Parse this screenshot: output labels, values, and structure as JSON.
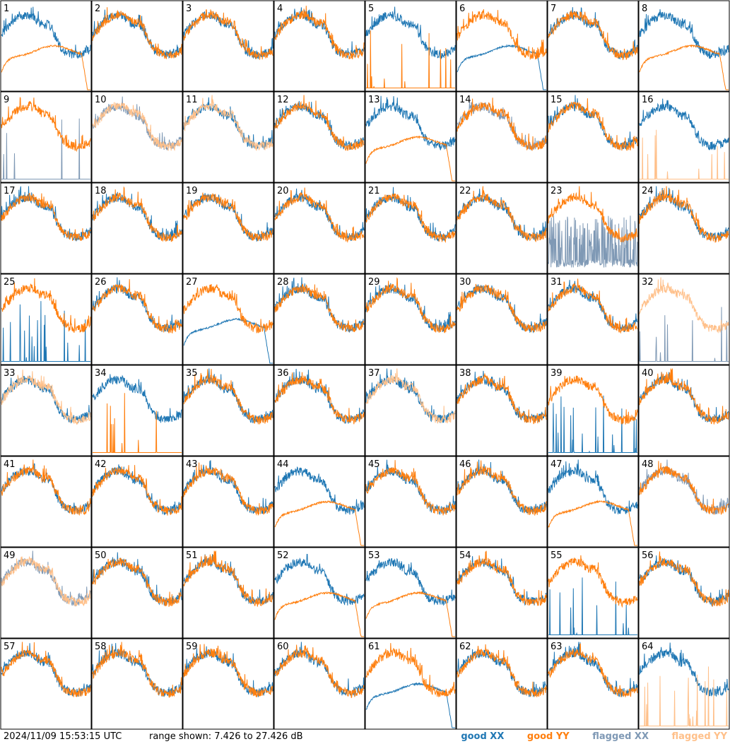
{
  "footer": {
    "timestamp": "2024/11/09 15:53:15 UTC",
    "range_text": "range shown: 7.426 to 27.426 dB"
  },
  "legend": [
    {
      "label": "good XX",
      "color": "#1f77b4"
    },
    {
      "label": "good YY",
      "color": "#ff7f0e"
    },
    {
      "label": "flagged XX",
      "color": "#7f99b5"
    },
    {
      "label": "flagged YY",
      "color": "#ffc08a"
    }
  ],
  "chart_data": {
    "type": "line",
    "layout": "8x8 small multiples of per-antenna spectra",
    "ylim_db": [
      7.426,
      27.426
    ],
    "panels": [
      {
        "id": "1",
        "xx": "good",
        "yy": "good",
        "yy_shape": "flat-rolloff"
      },
      {
        "id": "2",
        "xx": "good",
        "yy": "good"
      },
      {
        "id": "3",
        "xx": "good",
        "yy": "good"
      },
      {
        "id": "4",
        "xx": "good",
        "yy": "good"
      },
      {
        "id": "5",
        "xx": "good",
        "yy": "good",
        "yy_shape": "spiky-low"
      },
      {
        "id": "6",
        "xx": "good",
        "yy": "good",
        "xx_shape": "flat-rolloff"
      },
      {
        "id": "7",
        "xx": "good",
        "yy": "good"
      },
      {
        "id": "8",
        "xx": "good",
        "yy": "good",
        "yy_shape": "flat-rolloff"
      },
      {
        "id": "9",
        "xx": "flagged",
        "yy": "good",
        "xx_shape": "spiky-low"
      },
      {
        "id": "10",
        "xx": "flagged",
        "yy": "flagged"
      },
      {
        "id": "11",
        "xx": "good",
        "yy": "flagged"
      },
      {
        "id": "12",
        "xx": "good",
        "yy": "good"
      },
      {
        "id": "13",
        "xx": "good",
        "yy": "good",
        "yy_shape": "flat-rolloff"
      },
      {
        "id": "14",
        "xx": "flagged",
        "yy": "good"
      },
      {
        "id": "15",
        "xx": "good",
        "yy": "good"
      },
      {
        "id": "16",
        "xx": "good",
        "yy": "flagged",
        "yy_shape": "spiky-low"
      },
      {
        "id": "17",
        "xx": "good",
        "yy": "good"
      },
      {
        "id": "18",
        "xx": "good",
        "yy": "good"
      },
      {
        "id": "19",
        "xx": "good",
        "yy": "good"
      },
      {
        "id": "20",
        "xx": "good",
        "yy": "good"
      },
      {
        "id": "21",
        "xx": "good",
        "yy": "good"
      },
      {
        "id": "22",
        "xx": "good",
        "yy": "good"
      },
      {
        "id": "23",
        "xx": "flagged",
        "yy": "good",
        "xx_shape": "noisy-drop"
      },
      {
        "id": "24",
        "xx": "good",
        "yy": "good"
      },
      {
        "id": "25",
        "xx": "good",
        "yy": "good",
        "xx_shape": "spiky-low"
      },
      {
        "id": "26",
        "xx": "good",
        "yy": "good"
      },
      {
        "id": "27",
        "xx": "good",
        "yy": "good",
        "xx_shape": "flat-rolloff"
      },
      {
        "id": "28",
        "xx": "good",
        "yy": "good"
      },
      {
        "id": "29",
        "xx": "good",
        "yy": "good"
      },
      {
        "id": "30",
        "xx": "good",
        "yy": "good"
      },
      {
        "id": "31",
        "xx": "good",
        "yy": "good"
      },
      {
        "id": "32",
        "xx": "flagged",
        "yy": "flagged",
        "xx_shape": "spiky-low"
      },
      {
        "id": "33",
        "xx": "good",
        "yy": "flagged"
      },
      {
        "id": "34",
        "xx": "good",
        "yy": "good",
        "yy_shape": "spiky-low"
      },
      {
        "id": "35",
        "xx": "good",
        "yy": "good"
      },
      {
        "id": "36",
        "xx": "good",
        "yy": "good"
      },
      {
        "id": "37",
        "xx": "good",
        "yy": "flagged"
      },
      {
        "id": "38",
        "xx": "good",
        "yy": "good"
      },
      {
        "id": "39",
        "xx": "good",
        "yy": "good",
        "xx_shape": "spiky-low"
      },
      {
        "id": "40",
        "xx": "good",
        "yy": "good"
      },
      {
        "id": "41",
        "xx": "good",
        "yy": "good"
      },
      {
        "id": "42",
        "xx": "good",
        "yy": "good"
      },
      {
        "id": "43",
        "xx": "good",
        "yy": "good"
      },
      {
        "id": "44",
        "xx": "good",
        "yy": "good",
        "yy_shape": "flat-rolloff"
      },
      {
        "id": "45",
        "xx": "good",
        "yy": "good"
      },
      {
        "id": "46",
        "xx": "good",
        "yy": "good"
      },
      {
        "id": "47",
        "xx": "good",
        "yy": "good",
        "yy_shape": "flat-rolloff"
      },
      {
        "id": "48",
        "xx": "flagged",
        "yy": "good"
      },
      {
        "id": "49",
        "xx": "flagged",
        "yy": "flagged"
      },
      {
        "id": "50",
        "xx": "good",
        "yy": "good"
      },
      {
        "id": "51",
        "xx": "good",
        "yy": "good"
      },
      {
        "id": "52",
        "xx": "good",
        "yy": "good",
        "yy_shape": "flat-rolloff"
      },
      {
        "id": "53",
        "xx": "good",
        "yy": "good",
        "yy_shape": "flat-rolloff"
      },
      {
        "id": "54",
        "xx": "good",
        "yy": "good"
      },
      {
        "id": "55",
        "xx": "good",
        "yy": "good",
        "xx_shape": "spiky-low"
      },
      {
        "id": "56",
        "xx": "good",
        "yy": "good"
      },
      {
        "id": "57",
        "xx": "good",
        "yy": "good"
      },
      {
        "id": "58",
        "xx": "good",
        "yy": "good"
      },
      {
        "id": "59",
        "xx": "good",
        "yy": "good"
      },
      {
        "id": "60",
        "xx": "good",
        "yy": "good"
      },
      {
        "id": "61",
        "xx": "good",
        "yy": "good",
        "xx_shape": "flat-rolloff"
      },
      {
        "id": "62",
        "xx": "good",
        "yy": "good"
      },
      {
        "id": "63",
        "xx": "good",
        "yy": "good"
      },
      {
        "id": "64",
        "xx": "good",
        "yy": "flagged",
        "yy_shape": "spiky-low"
      }
    ]
  }
}
